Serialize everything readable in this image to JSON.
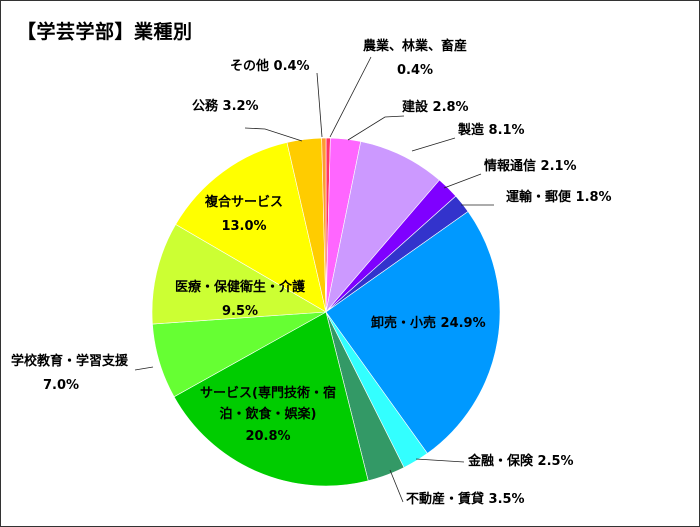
{
  "chart_data": {
    "type": "pie",
    "title": "【学芸学部】業種別",
    "slices": [
      {
        "label": "農業、林業、畜産",
        "value_label": "0.4%",
        "value": 0.4,
        "color": "#FF3366"
      },
      {
        "label": "建設",
        "value_label": "2.8%",
        "value": 2.8,
        "color": "#FF66FF"
      },
      {
        "label": "製造",
        "value_label": "8.1%",
        "value": 8.1,
        "color": "#CC99FF"
      },
      {
        "label": "情報通信",
        "value_label": "2.1%",
        "value": 2.1,
        "color": "#7F00FF"
      },
      {
        "label": "運輸・郵便",
        "value_label": "1.8%",
        "value": 1.8,
        "color": "#3333CC"
      },
      {
        "label": "卸売・小売",
        "value_label": "24.9%",
        "value": 24.9,
        "color": "#0099FF"
      },
      {
        "label": "金融・保険",
        "value_label": "2.5%",
        "value": 2.5,
        "color": "#33FFFF"
      },
      {
        "label": "不動産・賃貸",
        "value_label": "3.5%",
        "value": 3.5,
        "color": "#339966"
      },
      {
        "label": "サービス(専門技術・宿泊・飲食・娯楽)",
        "value_label": "20.8%",
        "value": 20.8,
        "color": "#00CC00"
      },
      {
        "label": "学校教育・学習支援",
        "value_label": "7.0%",
        "value": 7.0,
        "color": "#66FF33"
      },
      {
        "label": "医療・保健衛生・介護",
        "value_label": "9.5%",
        "value": 9.5,
        "color": "#CCFF33"
      },
      {
        "label": "複合サービス",
        "value_label": "13.0%",
        "value": 13.0,
        "color": "#FFFF00"
      },
      {
        "label": "公務",
        "value_label": "3.2%",
        "value": 3.2,
        "color": "#FFCC00"
      },
      {
        "label": "その他",
        "value_label": "0.4%",
        "value": 0.4,
        "color": "#FF9933"
      }
    ]
  }
}
